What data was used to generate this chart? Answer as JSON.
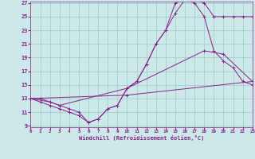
{
  "xlabel": "Windchill (Refroidissement éolien,°C)",
  "bg_color": "#cce8e8",
  "grid_color": "#99cccc",
  "line_color": "#882288",
  "xmin": 0,
  "xmax": 23,
  "ymin": 9,
  "ymax": 27,
  "yticks": [
    9,
    11,
    13,
    15,
    17,
    19,
    21,
    23,
    25,
    27
  ],
  "xticks": [
    0,
    1,
    2,
    3,
    4,
    5,
    6,
    7,
    8,
    9,
    10,
    11,
    12,
    13,
    14,
    15,
    16,
    17,
    18,
    19,
    20,
    21,
    22,
    23
  ],
  "line1_x": [
    0,
    1,
    2,
    3,
    4,
    5,
    6,
    7,
    8,
    9,
    10,
    11,
    12,
    13,
    14,
    15,
    16,
    17,
    18,
    19,
    20,
    21,
    22,
    23
  ],
  "line1_y": [
    13.0,
    13.0,
    12.5,
    12.0,
    11.5,
    11.0,
    9.5,
    10.0,
    11.5,
    12.0,
    14.5,
    15.5,
    18.0,
    21.0,
    23.0,
    25.5,
    27.5,
    27.5,
    27.0,
    25.0,
    25.0,
    25.0,
    25.0,
    25.0
  ],
  "line2_x": [
    0,
    1,
    2,
    3,
    4,
    5,
    6,
    7,
    8,
    9,
    10,
    11,
    12,
    13,
    14,
    15,
    16,
    17,
    18,
    19,
    20,
    21,
    22,
    23
  ],
  "line2_y": [
    13.0,
    12.5,
    12.0,
    11.5,
    11.0,
    10.5,
    9.5,
    10.0,
    11.5,
    12.0,
    14.5,
    15.5,
    18.0,
    21.0,
    23.0,
    27.0,
    27.5,
    27.0,
    25.0,
    20.0,
    18.5,
    17.5,
    15.5,
    15.0
  ],
  "line3_x": [
    0,
    2,
    3,
    10,
    18,
    20,
    23
  ],
  "line3_y": [
    13.0,
    12.5,
    12.0,
    14.5,
    20.0,
    19.5,
    15.5
  ],
  "line4_x": [
    0,
    10,
    23
  ],
  "line4_y": [
    13.0,
    13.5,
    15.5
  ]
}
